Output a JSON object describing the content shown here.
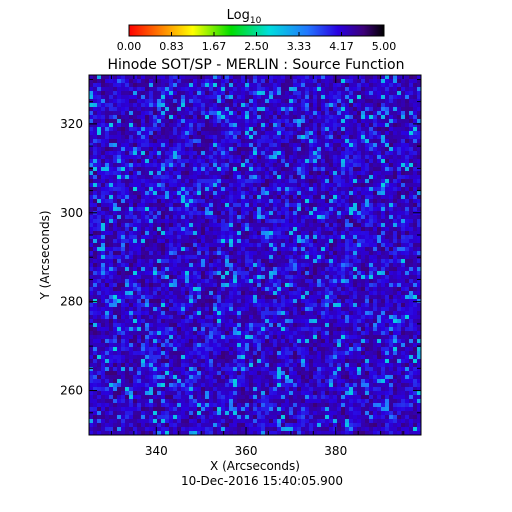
{
  "chart_data": {
    "type": "heatmap",
    "title": "Hinode SOT/SP - MERLIN : Source Function",
    "colorbar": {
      "label_base": "Log",
      "label_sub": "10",
      "ticks": [
        "0.00",
        "0.83",
        "1.67",
        "2.50",
        "3.33",
        "4.17",
        "5.00"
      ],
      "range": [
        0,
        5
      ],
      "colormap": "rainbow"
    },
    "x_axis": {
      "label": "X (Arcseconds)",
      "ticks": [
        340,
        360,
        380
      ],
      "range": [
        325,
        399
      ]
    },
    "y_axis": {
      "label": "Y (Arcseconds)",
      "ticks": [
        260,
        280,
        300,
        320
      ],
      "range": [
        250,
        331
      ]
    },
    "grid": false,
    "dominant_value_log10": 4.2,
    "value_spread_log10": [
      2.5,
      4.6
    ]
  },
  "timestamp": "10-Dec-2016 15:40:05.900"
}
